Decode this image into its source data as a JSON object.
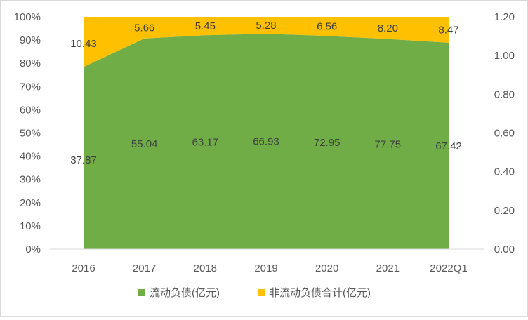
{
  "chart_data": {
    "type": "area",
    "stacking": "percent",
    "categories": [
      "2016",
      "2017",
      "2018",
      "2019",
      "2020",
      "2021",
      "2022Q1"
    ],
    "series": [
      {
        "name": "流动负债(亿元)",
        "values": [
          37.87,
          55.04,
          63.17,
          66.93,
          72.95,
          77.75,
          67.42
        ],
        "color": "#70ad47"
      },
      {
        "name": "非流动负债合计(亿元)",
        "values": [
          10.43,
          5.66,
          5.45,
          5.28,
          6.56,
          8.2,
          8.47
        ],
        "color": "#ffc000"
      }
    ],
    "data_labels": {
      "current": [
        "37.87",
        "55.04",
        "63.17",
        "66.93",
        "72.95",
        "77.75",
        "67.42"
      ],
      "noncurrent": [
        "10.43",
        "5.66",
        "5.45",
        "5.28",
        "6.56",
        "8.20",
        "8.47"
      ]
    },
    "y_left": {
      "ticks": [
        "0%",
        "10%",
        "20%",
        "30%",
        "40%",
        "50%",
        "60%",
        "70%",
        "80%",
        "90%",
        "100%"
      ],
      "range": [
        0,
        1
      ]
    },
    "y_right": {
      "ticks": [
        "0.00",
        "0.20",
        "0.40",
        "0.60",
        "0.80",
        "1.00",
        "1.20"
      ],
      "range": [
        0,
        1.2
      ]
    },
    "grid": false,
    "legend_position": "bottom",
    "title": "",
    "xlabel": "",
    "ylabel": ""
  }
}
